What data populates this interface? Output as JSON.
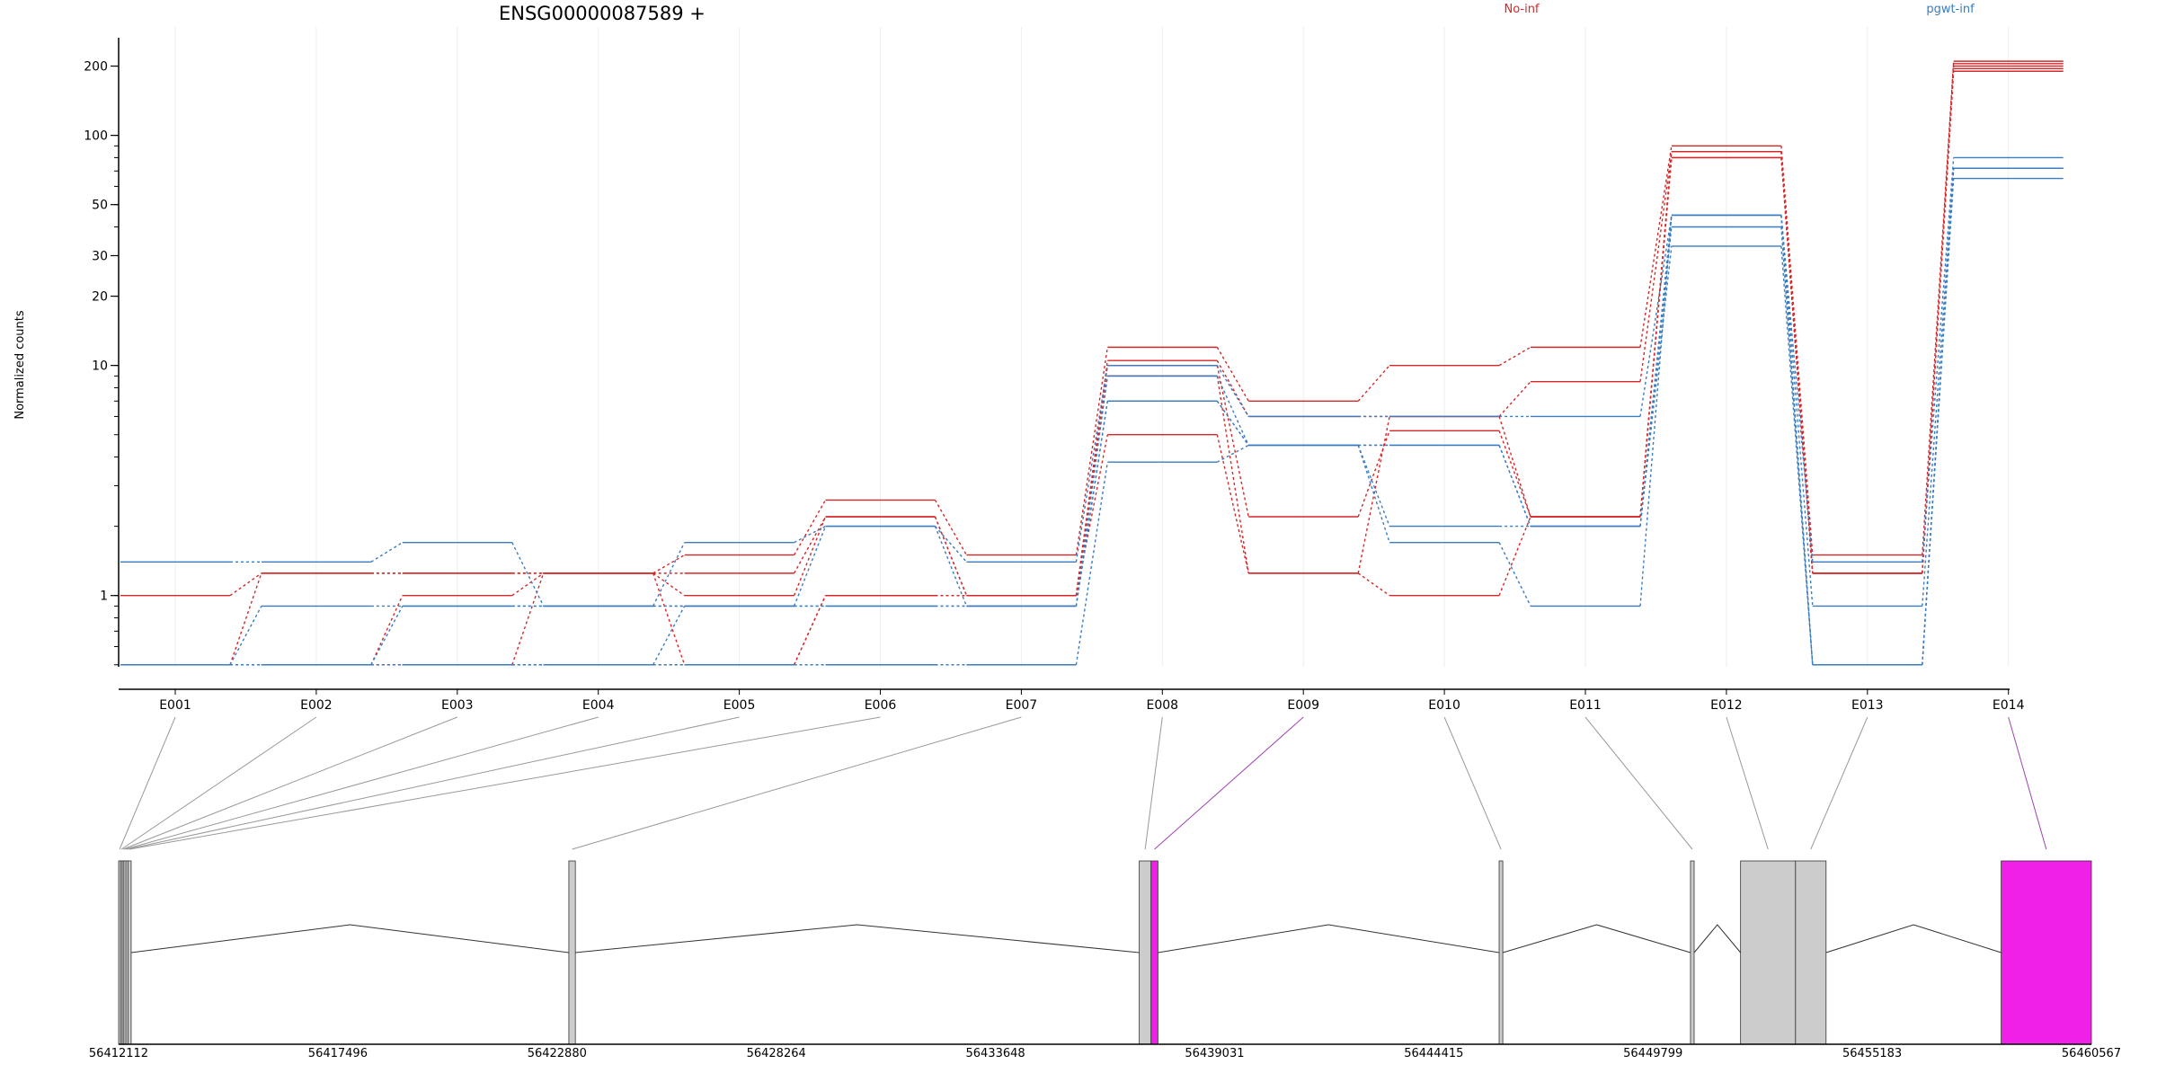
{
  "chart_data": {
    "type": "line",
    "title": "ENSG00000087589 +",
    "ylabel": "Normalized counts",
    "y_scale": "log",
    "y_range": [
      0.49,
      230
    ],
    "y_ticks": [
      1,
      10,
      20,
      30,
      50,
      100,
      200
    ],
    "categories": [
      "E001",
      "E002",
      "E003",
      "E004",
      "E005",
      "E006",
      "E007",
      "E008",
      "E009",
      "E010",
      "E011",
      "E012",
      "E013",
      "E014"
    ],
    "legend": [
      {
        "name": "No-inf",
        "color": "#d62728"
      },
      {
        "name": "pgwt-inf",
        "color": "#3a7cbf"
      }
    ],
    "series": [
      {
        "group": "No-inf",
        "values": [
          1.0,
          1.25,
          1.25,
          1.25,
          1.5,
          2.6,
          1.5,
          12.0,
          7.0,
          10.0,
          12.0,
          90.0,
          1.5,
          210.0
        ]
      },
      {
        "group": "No-inf",
        "values": [
          0.5,
          1.25,
          1.25,
          1.25,
          1.25,
          2.2,
          1.0,
          10.5,
          6.0,
          6.0,
          8.5,
          85.0,
          1.25,
          205.0
        ]
      },
      {
        "group": "No-inf",
        "values": [
          0.5,
          0.5,
          1.0,
          1.25,
          1.0,
          2.2,
          1.0,
          10.0,
          2.2,
          5.2,
          2.2,
          85.0,
          1.25,
          200.0
        ]
      },
      {
        "group": "No-inf",
        "values": [
          0.5,
          0.5,
          0.5,
          1.25,
          0.5,
          1.0,
          1.0,
          9.0,
          1.25,
          1.0,
          2.2,
          80.0,
          1.25,
          195.0
        ]
      },
      {
        "group": "No-inf",
        "values": [
          0.5,
          0.5,
          0.5,
          0.5,
          0.5,
          1.0,
          1.0,
          5.0,
          1.25,
          6.0,
          2.2,
          80.0,
          1.25,
          190.0
        ]
      },
      {
        "group": "pgwt-inf",
        "values": [
          1.4,
          1.4,
          1.7,
          0.9,
          1.7,
          2.0,
          1.4,
          10.0,
          6.0,
          6.0,
          6.0,
          45.0,
          1.4,
          80.0
        ]
      },
      {
        "group": "pgwt-inf",
        "values": [
          0.5,
          0.9,
          0.9,
          0.9,
          0.9,
          2.0,
          0.9,
          9.0,
          4.5,
          4.5,
          2.0,
          45.0,
          0.9,
          72.0
        ]
      },
      {
        "group": "pgwt-inf",
        "values": [
          0.5,
          0.5,
          0.9,
          0.9,
          0.9,
          0.9,
          0.9,
          7.0,
          4.5,
          2.0,
          2.0,
          40.0,
          0.5,
          72.0
        ]
      },
      {
        "group": "pgwt-inf",
        "values": [
          0.5,
          0.5,
          0.5,
          0.5,
          0.9,
          0.9,
          0.9,
          7.0,
          4.5,
          1.7,
          0.9,
          45.0,
          0.5,
          72.0
        ]
      },
      {
        "group": "pgwt-inf",
        "values": [
          0.5,
          0.5,
          0.5,
          0.5,
          0.5,
          0.5,
          0.5,
          3.8,
          4.5,
          4.5,
          2.0,
          33.0,
          0.5,
          65.0
        ]
      }
    ],
    "gene_model": {
      "coord_range": [
        56412112,
        56460567
      ],
      "coord_ticks": [
        56412112,
        56417496,
        56422880,
        56428264,
        56433648,
        56439031,
        56444415,
        56449799,
        56455183,
        56460567
      ],
      "exon_color": "#cccccc",
      "highlight_color": "#f020e8",
      "exons": [
        {
          "id": "E001",
          "start": 56412112,
          "end": 56412160,
          "highlight": false
        },
        {
          "id": "E002",
          "start": 56412160,
          "end": 56412200,
          "highlight": false
        },
        {
          "id": "E003",
          "start": 56412200,
          "end": 56412240,
          "highlight": false
        },
        {
          "id": "E004",
          "start": 56412240,
          "end": 56412290,
          "highlight": false
        },
        {
          "id": "E005",
          "start": 56412290,
          "end": 56412340,
          "highlight": false
        },
        {
          "id": "E006",
          "start": 56412340,
          "end": 56412420,
          "highlight": false
        },
        {
          "id": "E007",
          "start": 56423170,
          "end": 56423330,
          "highlight": false
        },
        {
          "id": "E008",
          "start": 56437180,
          "end": 56437470,
          "highlight": false
        },
        {
          "id": "E009",
          "start": 56437470,
          "end": 56437640,
          "highlight": true
        },
        {
          "id": "E010",
          "start": 56446020,
          "end": 56446110,
          "highlight": false
        },
        {
          "id": "E011",
          "start": 56450720,
          "end": 56450810,
          "highlight": false
        },
        {
          "id": "E012",
          "start": 56451950,
          "end": 56453300,
          "highlight": false
        },
        {
          "id": "E013",
          "start": 56453300,
          "end": 56454050,
          "highlight": false
        },
        {
          "id": "E014",
          "start": 56458350,
          "end": 56460567,
          "highlight": true
        }
      ]
    }
  }
}
